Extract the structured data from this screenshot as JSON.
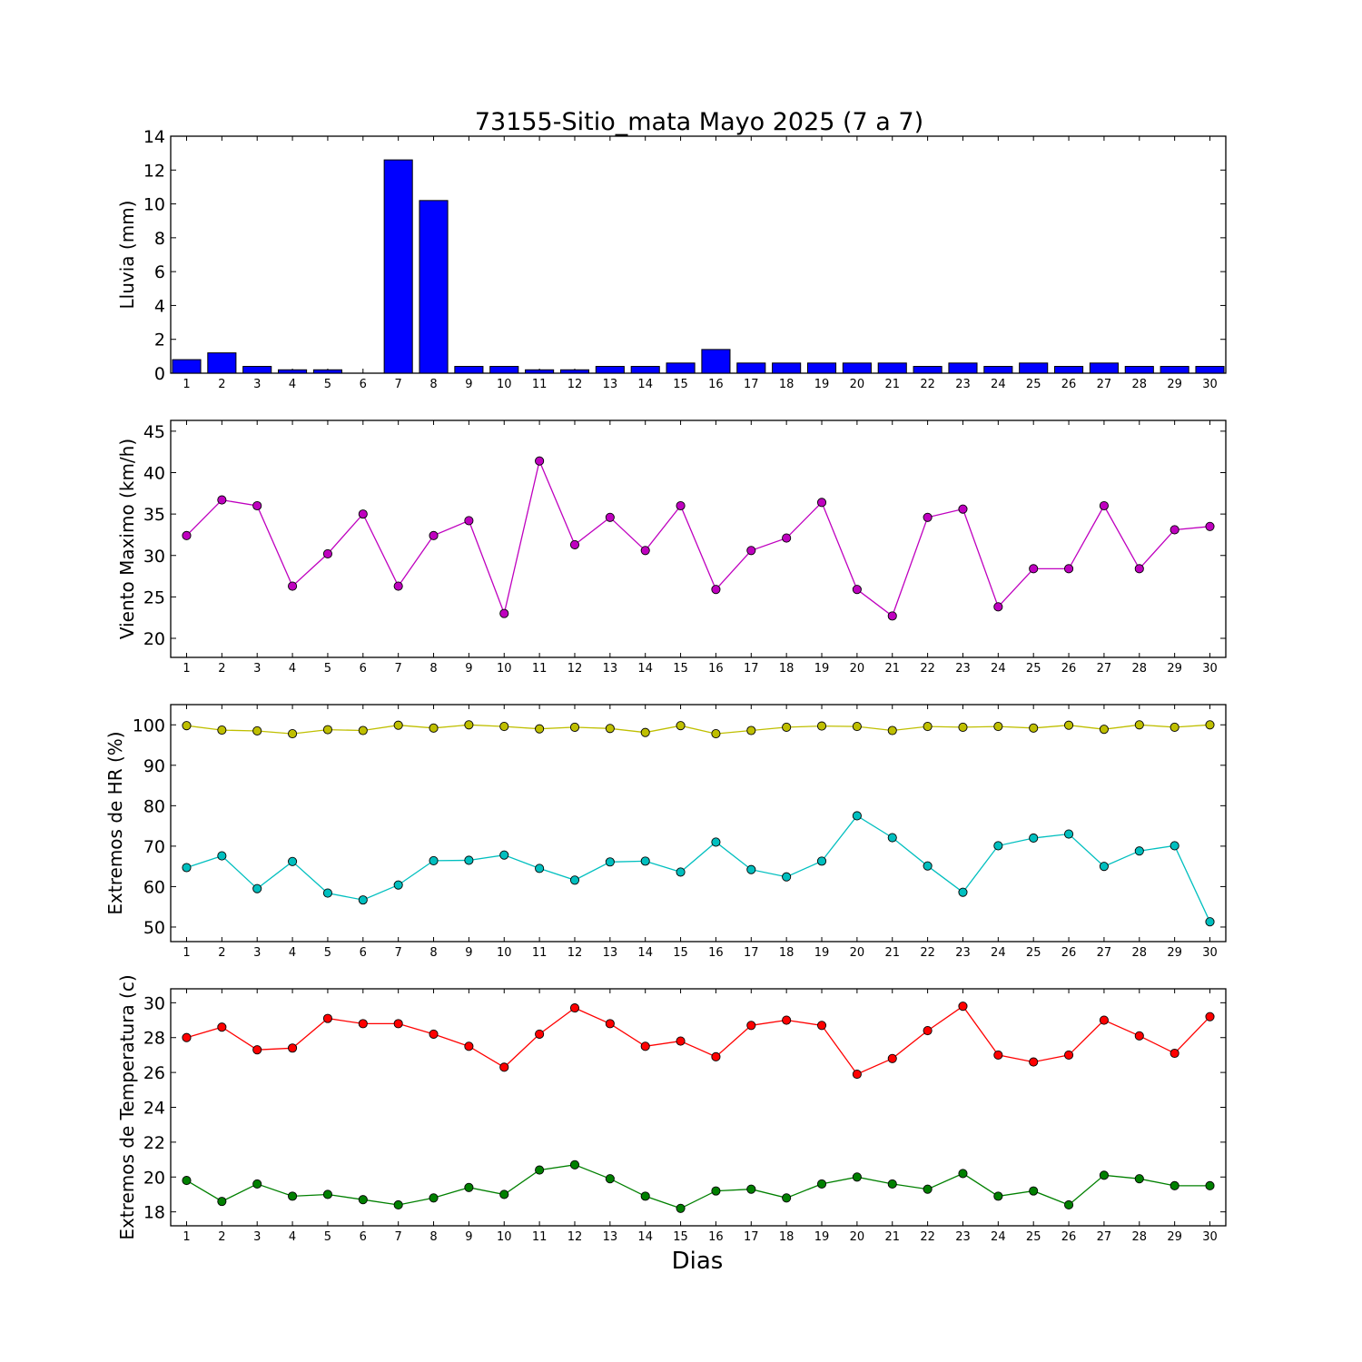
{
  "title": "73155-Sitio_mata Mayo 2025  (7 a 7)",
  "xlabel": "Dias",
  "chart_data": [
    {
      "type": "bar",
      "ylabel": "Lluvia (mm)",
      "ylim": [
        0,
        14
      ],
      "yticks": [
        0,
        2,
        4,
        6,
        8,
        10,
        12,
        14
      ],
      "x": [
        1,
        2,
        3,
        4,
        5,
        6,
        7,
        8,
        9,
        10,
        11,
        12,
        13,
        14,
        15,
        16,
        17,
        18,
        19,
        20,
        21,
        22,
        23,
        24,
        25,
        26,
        27,
        28,
        29,
        30
      ],
      "series": [
        {
          "color": "#0000ff",
          "values": [
            0.8,
            1.2,
            0.4,
            0.2,
            0.2,
            0.0,
            12.6,
            10.2,
            0.4,
            0.4,
            0.2,
            0.2,
            0.4,
            0.4,
            0.6,
            1.4,
            0.6,
            0.6,
            0.6,
            0.6,
            0.6,
            0.4,
            0.6,
            0.4,
            0.6,
            0.4,
            0.6,
            0.4,
            0.4,
            0.4
          ]
        }
      ]
    },
    {
      "type": "line",
      "ylabel": "Viento Maximo (km/h)",
      "ylim": [
        17.7,
        46.3
      ],
      "yticks": [
        20,
        25,
        30,
        35,
        40,
        45
      ],
      "x": [
        1,
        2,
        3,
        4,
        5,
        6,
        7,
        8,
        9,
        10,
        11,
        12,
        13,
        14,
        15,
        16,
        17,
        18,
        19,
        20,
        21,
        22,
        23,
        24,
        25,
        26,
        27,
        28,
        29,
        30
      ],
      "series": [
        {
          "color": "#bf00bf",
          "values": [
            32.4,
            36.7,
            36.0,
            26.3,
            30.2,
            35.0,
            26.3,
            32.4,
            34.2,
            23.0,
            41.4,
            31.3,
            34.6,
            30.6,
            36.0,
            25.9,
            30.6,
            32.1,
            36.4,
            25.9,
            22.7,
            34.6,
            35.6,
            23.8,
            28.4,
            28.4,
            36.0,
            28.4,
            33.1,
            33.5
          ]
        }
      ]
    },
    {
      "type": "line",
      "ylabel": "Extremos de HR (%)",
      "ylim": [
        46.4,
        105
      ],
      "yticks": [
        50,
        60,
        70,
        80,
        90,
        100
      ],
      "x": [
        1,
        2,
        3,
        4,
        5,
        6,
        7,
        8,
        9,
        10,
        11,
        12,
        13,
        14,
        15,
        16,
        17,
        18,
        19,
        20,
        21,
        22,
        23,
        24,
        25,
        26,
        27,
        28,
        29,
        30
      ],
      "series": [
        {
          "color": "#bfbf00",
          "values": [
            99.8,
            98.7,
            98.5,
            97.8,
            98.8,
            98.6,
            99.9,
            99.2,
            100.0,
            99.6,
            99.0,
            99.4,
            99.1,
            98.1,
            99.8,
            97.8,
            98.6,
            99.4,
            99.7,
            99.6,
            98.6,
            99.6,
            99.4,
            99.6,
            99.2,
            99.9,
            98.9,
            100.0,
            99.4,
            100.0
          ]
        },
        {
          "color": "#00bfbf",
          "values": [
            64.7,
            67.6,
            59.5,
            66.2,
            58.4,
            56.7,
            60.4,
            66.4,
            66.5,
            67.8,
            64.5,
            61.6,
            66.1,
            66.3,
            63.6,
            71.0,
            64.2,
            62.4,
            66.3,
            77.5,
            72.1,
            65.1,
            58.6,
            70.1,
            72.0,
            73.0,
            65.0,
            68.8,
            70.1,
            51.3
          ]
        }
      ]
    },
    {
      "type": "line",
      "ylabel": "Extremos de Temperatura (c)",
      "ylim": [
        17.2,
        30.8
      ],
      "yticks": [
        18,
        20,
        22,
        24,
        26,
        28,
        30
      ],
      "x": [
        1,
        2,
        3,
        4,
        5,
        6,
        7,
        8,
        9,
        10,
        11,
        12,
        13,
        14,
        15,
        16,
        17,
        18,
        19,
        20,
        21,
        22,
        23,
        24,
        25,
        26,
        27,
        28,
        29,
        30
      ],
      "series": [
        {
          "color": "#ff0000",
          "values": [
            28.0,
            28.6,
            27.3,
            27.4,
            29.1,
            28.8,
            28.8,
            28.2,
            27.5,
            26.3,
            28.2,
            29.7,
            28.8,
            27.5,
            27.8,
            26.9,
            28.7,
            29.0,
            28.7,
            25.9,
            26.8,
            28.4,
            29.8,
            27.0,
            26.6,
            27.0,
            29.0,
            28.1,
            27.1,
            29.2
          ]
        },
        {
          "color": "#008000",
          "values": [
            19.8,
            18.6,
            19.6,
            18.9,
            19.0,
            18.7,
            18.4,
            18.8,
            19.4,
            19.0,
            20.4,
            20.7,
            19.9,
            18.9,
            18.2,
            19.2,
            19.3,
            18.8,
            19.6,
            20.0,
            19.6,
            19.3,
            20.2,
            18.9,
            19.2,
            18.4,
            20.1,
            19.9,
            19.5,
            19.5
          ]
        }
      ]
    }
  ]
}
